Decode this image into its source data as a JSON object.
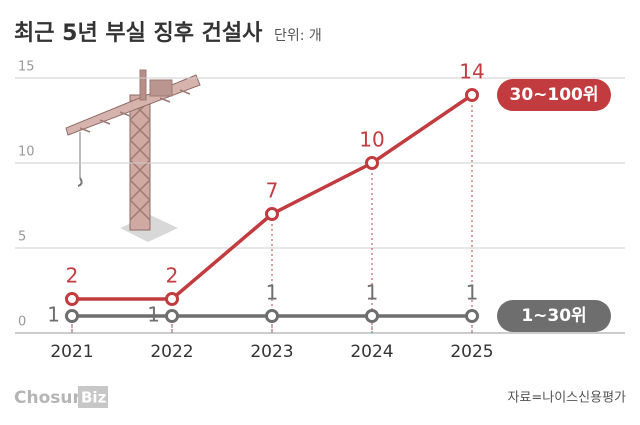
{
  "chart_data": {
    "type": "line",
    "title": "최근 5년 부실 징후 건설사",
    "subtitle": "단위: 개",
    "categories": [
      "2021",
      "2022",
      "2023",
      "2024",
      "2025"
    ],
    "series": [
      {
        "name": "30~100위",
        "color": "#c23b3f",
        "values": [
          2,
          2,
          7,
          10,
          14
        ]
      },
      {
        "name": "1~30위",
        "color": "#6e6e6e",
        "values": [
          1,
          1,
          1,
          1,
          1
        ]
      }
    ],
    "ylim": [
      0,
      15
    ],
    "yticks": [
      0,
      5,
      10,
      15
    ],
    "grid": true,
    "source": "자료=나이스신용평가",
    "logo": [
      "Chosun",
      "Biz"
    ]
  }
}
